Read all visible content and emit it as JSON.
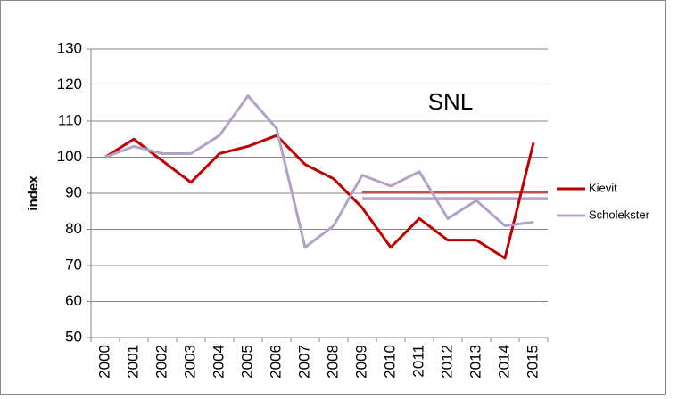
{
  "chart_data": {
    "type": "line",
    "y_label": "index",
    "annotation": "SNL",
    "categories": [
      "2000",
      "2001",
      "2002",
      "2003",
      "2004",
      "2005",
      "2006",
      "2007",
      "2008",
      "2009",
      "2010",
      "2011",
      "2012",
      "2013",
      "2014",
      "2015"
    ],
    "series": [
      {
        "name": "Kievit",
        "color": "#c00000",
        "values": [
          100,
          105,
          99,
          93,
          101,
          103,
          106,
          98,
          94,
          86,
          75,
          83,
          77,
          77,
          72,
          104
        ]
      },
      {
        "name": "Scholekster",
        "color": "#b3a2c7",
        "values": [
          100,
          103,
          101,
          101,
          106,
          117,
          108,
          75,
          81,
          95,
          92,
          96,
          83,
          88,
          81,
          82
        ]
      }
    ],
    "hlines": [
      {
        "value": 90.3,
        "color": "#c0504d",
        "x": "2009"
      },
      {
        "value": 88.5,
        "color": "#b3a2c7",
        "x": "2009"
      }
    ],
    "ylim": [
      50,
      130
    ],
    "yticks": [
      50,
      60,
      70,
      80,
      90,
      100,
      110,
      120,
      130
    ],
    "grid": true,
    "legend": "right"
  }
}
